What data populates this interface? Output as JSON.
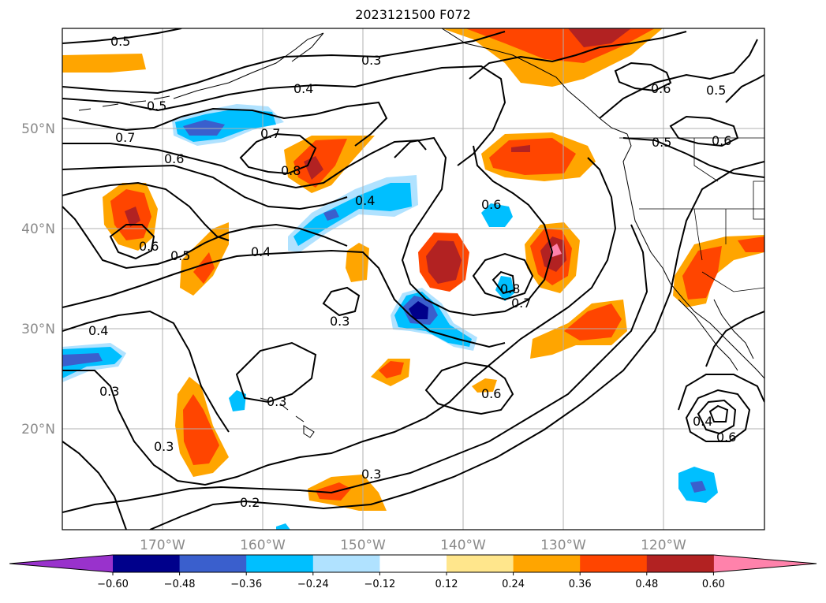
{
  "title": "2023121500 F072",
  "map": {
    "lat_labels": [
      "50°N",
      "40°N",
      "30°N",
      "20°N"
    ],
    "lon_labels": [
      "170°W",
      "160°W",
      "150°W",
      "140°W",
      "130°W",
      "120°W"
    ],
    "contour_labels": [
      "0.5",
      "0.3",
      "0.4",
      "0.5",
      "0.7",
      "0.7",
      "0.6",
      "0.8",
      "0.4",
      "0.6",
      "0.6",
      "0.5",
      "0.4",
      "0.3",
      "0.8",
      "0.7",
      "0.4",
      "0.3",
      "0.3",
      "0.6",
      "0.3",
      "0.3",
      "0.2",
      "0.6",
      "0.5",
      "0.6",
      "0.5",
      "0.4",
      "0.6"
    ]
  },
  "colorbar": {
    "ticks": [
      "−0.60",
      "−0.48",
      "−0.36",
      "−0.24",
      "−0.12",
      "0.12",
      "0.24",
      "0.36",
      "0.48",
      "0.60"
    ],
    "colors": [
      "#9932cc",
      "#00008b",
      "#3a5fcd",
      "#00bfff",
      "#b0e2ff",
      "#ffffff",
      "#ffe68c",
      "#ffa500",
      "#ff4500",
      "#b22222",
      "#ff82ab"
    ]
  }
}
